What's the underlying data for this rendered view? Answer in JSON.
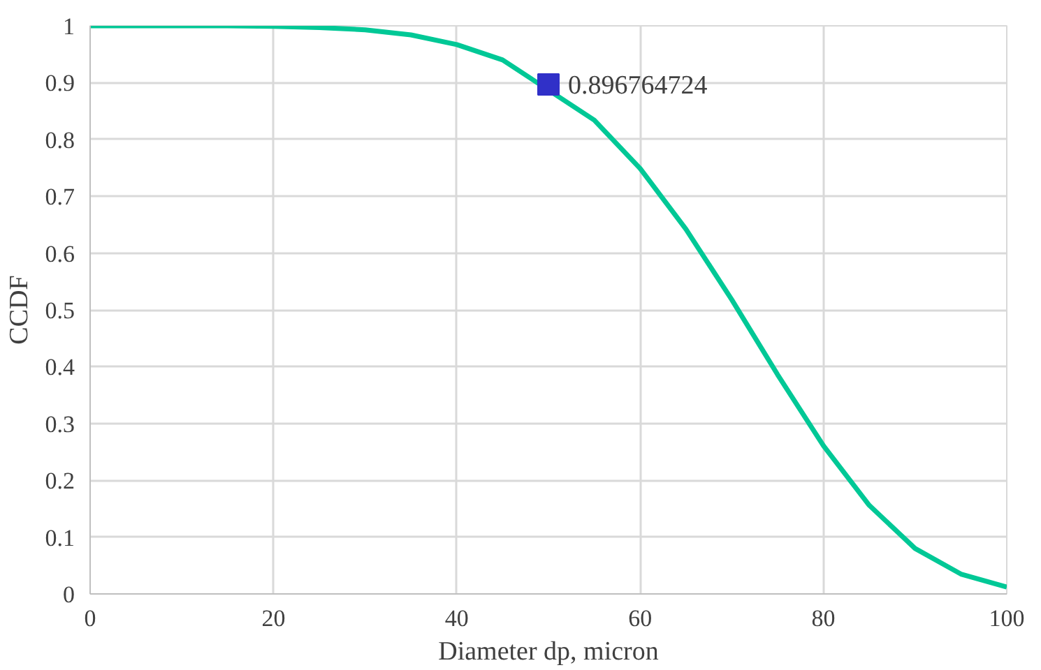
{
  "chart_data": {
    "type": "line",
    "xlabel": "Diameter dp, micron",
    "ylabel": "CCDF",
    "xlim": [
      0,
      100
    ],
    "ylim": [
      0,
      1
    ],
    "xticks": [
      0,
      20,
      40,
      60,
      80,
      100
    ],
    "yticks": [
      0,
      {
        "value": 0.1,
        "label": "0.1"
      },
      {
        "value": 0.2,
        "label": "0.2"
      },
      {
        "value": 0.3,
        "label": "0.3"
      },
      {
        "value": 0.4,
        "label": "0.4"
      },
      {
        "value": 0.5,
        "label": "0.5"
      },
      {
        "value": 0.6,
        "label": "0.6"
      },
      {
        "value": 0.7,
        "label": "0.7"
      },
      {
        "value": 0.8,
        "label": "0.8"
      },
      {
        "value": 0.9,
        "label": "0.9"
      },
      1
    ],
    "grid": true,
    "series": [
      {
        "color": "#00c896",
        "x": [
          0,
          5,
          10,
          15,
          20,
          25,
          30,
          35,
          40,
          45,
          55,
          60,
          65,
          70,
          75,
          80,
          85,
          90,
          95,
          100
        ],
        "values": [
          1,
          1,
          1,
          1,
          0.999,
          0.997,
          0.993,
          0.984,
          0.967,
          0.94,
          0.834,
          0.749,
          0.642,
          0.518,
          0.386,
          0.261,
          0.156,
          0.08,
          0.035,
          0.012
        ]
      },
      {
        "type": "scatter",
        "color": "#3030c8",
        "marker": "square",
        "x": [
          50
        ],
        "values": [
          0.896764724
        ],
        "value_labels": [
          "0.896764724"
        ]
      }
    ]
  }
}
